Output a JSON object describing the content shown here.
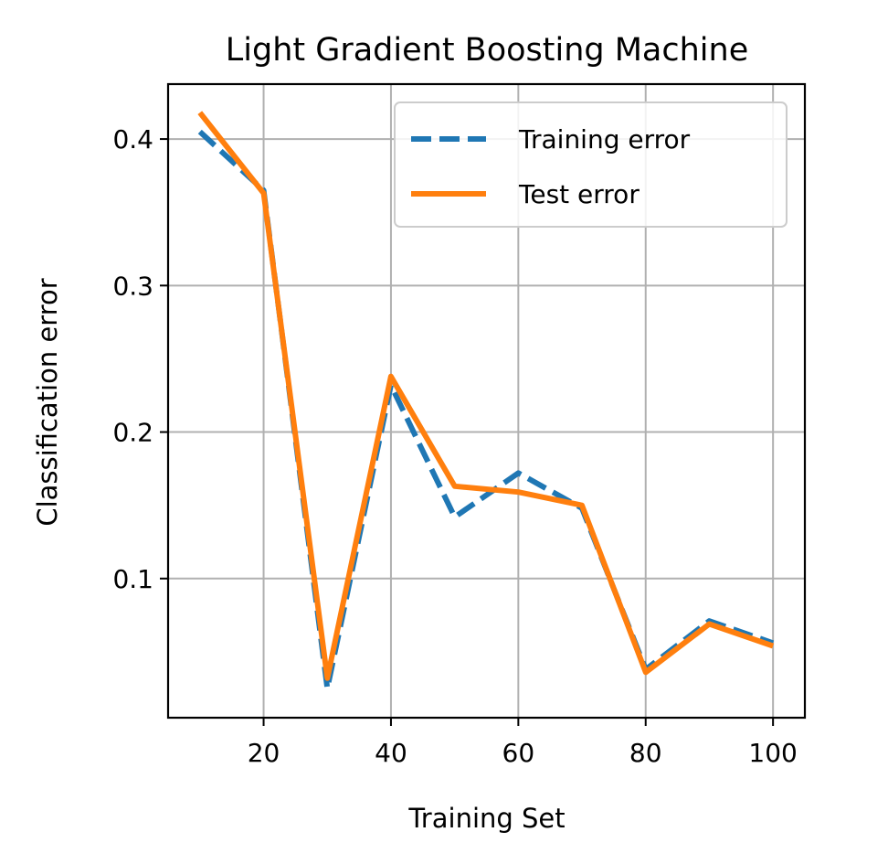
{
  "chart_data": {
    "type": "line",
    "title": "Light Gradient Boosting Machine",
    "xlabel": "Training Set",
    "ylabel": "Classification error",
    "xlim": [
      5,
      105
    ],
    "ylim": [
      0.005,
      0.4375
    ],
    "xticks": [
      20,
      40,
      60,
      80,
      100
    ],
    "xtick_labels": [
      "20",
      "40",
      "60",
      "80",
      "100"
    ],
    "yticks": [
      0.1,
      0.2,
      0.3,
      0.4
    ],
    "ytick_labels": [
      "0.1",
      "0.2",
      "0.3",
      "0.4"
    ],
    "grid": true,
    "legend": "top-right",
    "x": [
      10,
      20,
      30,
      40,
      50,
      60,
      70,
      80,
      90,
      100
    ],
    "series": [
      {
        "name": "Training error",
        "color": "#1f77b4",
        "style": "dashed",
        "values": [
          0.405,
          0.365,
          0.025,
          0.232,
          0.142,
          0.172,
          0.148,
          0.038,
          0.071,
          0.056
        ]
      },
      {
        "name": "Test error",
        "color": "#ff7f0e",
        "style": "solid",
        "values": [
          0.418,
          0.363,
          0.032,
          0.238,
          0.163,
          0.159,
          0.15,
          0.036,
          0.069,
          0.054
        ]
      }
    ]
  }
}
